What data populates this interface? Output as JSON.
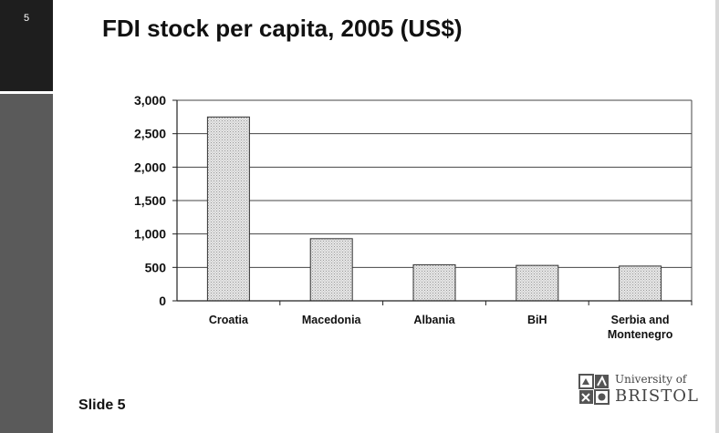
{
  "slide": {
    "number": "5",
    "title": "FDI stock per capita, 2005 (US$)",
    "footer": "Slide 5",
    "logo_line1": "University of",
    "logo_line2": "BRISTOL"
  },
  "chart_data": {
    "type": "bar",
    "title": "FDI stock per capita, 2005 (US$)",
    "xlabel": "",
    "ylabel": "",
    "categories": [
      "Croatia",
      "Macedonia",
      "Albania",
      "BiH",
      "Serbia and Montenegro"
    ],
    "category_lines": [
      [
        "Croatia"
      ],
      [
        "Macedonia"
      ],
      [
        "Albania"
      ],
      [
        "BiH"
      ],
      [
        "Serbia and",
        "Montenegro"
      ]
    ],
    "values": [
      2750,
      930,
      540,
      530,
      520
    ],
    "ylim": [
      0,
      3000
    ],
    "yticks": [
      0,
      500,
      1000,
      1500,
      2000,
      2500,
      3000
    ],
    "ytick_labels": [
      "0",
      "500",
      "1,000",
      "1,500",
      "2,000",
      "2,500",
      "3,000"
    ],
    "grid": true,
    "legend": "none",
    "colors": {
      "bar_fill": "#e2e2e2",
      "bar_stroke": "#333333",
      "grid": "#444444"
    }
  }
}
